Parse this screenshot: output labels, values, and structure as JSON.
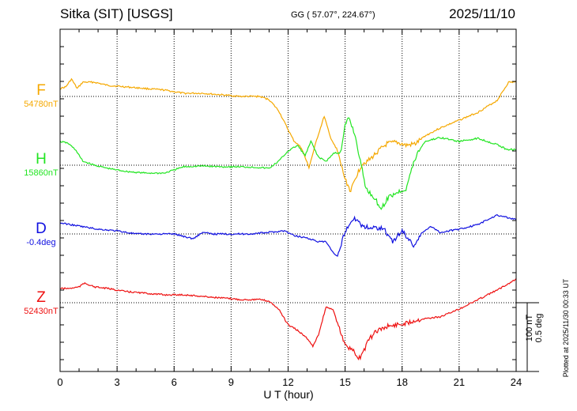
{
  "header": {
    "station": "Sitka (SIT)  [USGS]",
    "coords": "GG ( 57.07°, 224.67°)",
    "date": "2025/11/10"
  },
  "footer": {
    "plotted": "Plotted at 2025/11/30 00:33 UT",
    "scale_nt": "100 nT",
    "scale_deg": "0.5 deg"
  },
  "chart_data": {
    "type": "line",
    "xlabel": "U T (hour)",
    "xlim": [
      0,
      24
    ],
    "xticks": [
      "0",
      "3",
      "6",
      "9",
      "12",
      "15",
      "18",
      "21",
      "24"
    ],
    "grid": true,
    "series": [
      {
        "name": "F",
        "baseline": "54780nT",
        "color": "#f5a800",
        "x": [
          0,
          0.3,
          0.6,
          0.9,
          1.2,
          1.8,
          2.5,
          3.5,
          4.5,
          5.5,
          6.5,
          7.5,
          8.5,
          9.5,
          10.5,
          11,
          11.5,
          12,
          12.3,
          12.7,
          13.1,
          13.5,
          13.9,
          14.2,
          14.6,
          15,
          15.3,
          15.6,
          15.9,
          16.3,
          16.7,
          17.2,
          17.7,
          18.2,
          18.7,
          19.2,
          20,
          21,
          22,
          23,
          23.6,
          24
        ],
        "y": [
          -10,
          -12,
          -22,
          -10,
          -18,
          -18,
          -14,
          -12,
          -10,
          -8,
          -4,
          -4,
          -2,
          0,
          0,
          4,
          18,
          42,
          56,
          65,
          90,
          55,
          25,
          50,
          70,
          105,
          120,
          100,
          85,
          80,
          70,
          60,
          58,
          62,
          60,
          50,
          40,
          30,
          20,
          5,
          -18,
          -18
        ]
      },
      {
        "name": "H",
        "baseline": "15860nT",
        "color": "#22e522",
        "x": [
          0,
          0.4,
          0.8,
          1.2,
          1.8,
          2.5,
          3.5,
          4.5,
          5.5,
          6,
          6.5,
          7.5,
          8.5,
          9.5,
          10.5,
          11,
          11.5,
          12,
          12.5,
          12.9,
          13.2,
          13.6,
          14,
          14.4,
          14.8,
          15,
          15.2,
          15.5,
          15.8,
          16.1,
          16.5,
          16.9,
          17.3,
          17.7,
          18.2,
          18.5,
          18.8,
          19.2,
          20,
          21,
          22,
          22.5,
          23,
          23.5,
          24
        ],
        "y": [
          -30,
          -28,
          -20,
          -5,
          0,
          4,
          8,
          10,
          10,
          6,
          2,
          1,
          2,
          2,
          3,
          4,
          -5,
          -18,
          -25,
          -12,
          -30,
          -10,
          -5,
          -15,
          -18,
          -50,
          -60,
          -40,
          -5,
          30,
          40,
          55,
          40,
          35,
          30,
          5,
          -15,
          -30,
          -35,
          -30,
          -34,
          -30,
          -26,
          -20,
          -20
        ]
      },
      {
        "name": "D",
        "baseline": "-0.4deg",
        "color": "#1010e0",
        "x": [
          0,
          0.5,
          1,
          2,
          3,
          4,
          5,
          6,
          7,
          7.5,
          8,
          9,
          10,
          11,
          11.8,
          12.3,
          13,
          13.6,
          14,
          14.4,
          14.6,
          14.8,
          15,
          15.3,
          15.6,
          15.9,
          16.3,
          17,
          17.5,
          18,
          18.3,
          18.6,
          19,
          19.5,
          20,
          21,
          22,
          23,
          24
        ],
        "y": [
          -14,
          -12,
          -10,
          -6,
          -4,
          0,
          0,
          0,
          6,
          -2,
          0,
          0,
          0,
          -2,
          -4,
          2,
          5,
          10,
          10,
          25,
          30,
          12,
          -4,
          -15,
          -20,
          -10,
          -8,
          -8,
          10,
          -4,
          5,
          15,
          0,
          -10,
          -2,
          -6,
          -12,
          -24,
          -18
        ]
      },
      {
        "name": "Z",
        "baseline": "52430nT",
        "color": "#ee1010",
        "x": [
          0,
          0.5,
          1,
          1.3,
          1.8,
          2.5,
          3.5,
          4.5,
          5.5,
          6.5,
          7.5,
          8.5,
          9.5,
          10.5,
          11,
          11.5,
          12,
          12.5,
          13,
          13.3,
          13.6,
          14,
          14.4,
          14.8,
          15,
          15.2,
          15.4,
          15.7,
          16,
          16.3,
          16.7,
          17.2,
          17.7,
          18.2,
          18.7,
          19.2,
          20,
          21,
          22,
          23,
          24
        ],
        "y": [
          -18,
          -18,
          -20,
          -25,
          -20,
          -18,
          -14,
          -12,
          -10,
          -10,
          -8,
          -6,
          -4,
          -4,
          -2,
          8,
          28,
          35,
          45,
          55,
          40,
          5,
          10,
          40,
          52,
          58,
          60,
          72,
          60,
          45,
          35,
          30,
          28,
          26,
          22,
          20,
          18,
          8,
          -4,
          -16,
          -30
        ]
      }
    ]
  }
}
